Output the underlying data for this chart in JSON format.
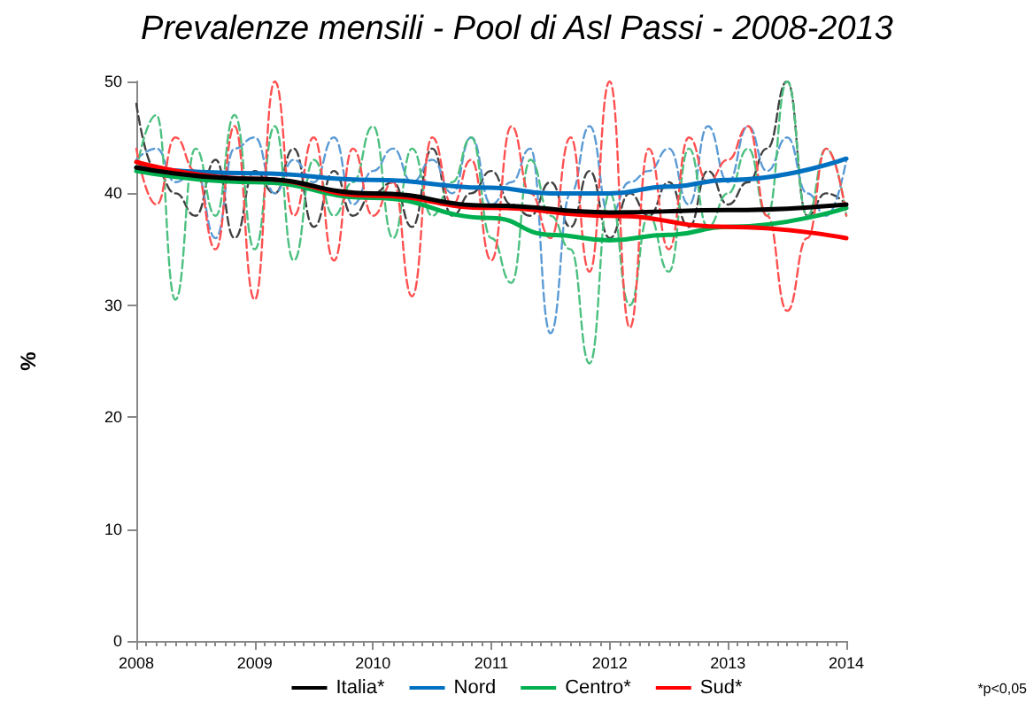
{
  "chart_data": {
    "type": "line",
    "title": "Prevalenze mensili - Pool di Asl Passi - 2008-2013",
    "ylabel": "%",
    "xlim": [
      2008,
      2014
    ],
    "xticks": [
      2008,
      2009,
      2010,
      2011,
      2012,
      2013,
      2014
    ],
    "ylim": [
      0,
      50
    ],
    "yticks": [
      0,
      10,
      20,
      30,
      40,
      50
    ],
    "grid": false,
    "legend": "bottom",
    "marker": "none",
    "annotations": [
      "*p<0,05"
    ],
    "series": [
      {
        "color": "#404040",
        "line_style": "dashed",
        "x": [
          2008,
          2008.17,
          2008.33,
          2008.5,
          2008.67,
          2008.83,
          2009,
          2009.17,
          2009.33,
          2009.5,
          2009.67,
          2009.83,
          2010,
          2010.17,
          2010.33,
          2010.5,
          2010.67,
          2010.83,
          2011,
          2011.17,
          2011.33,
          2011.5,
          2011.67,
          2011.83,
          2012,
          2012.17,
          2012.33,
          2012.5,
          2012.67,
          2012.83,
          2013,
          2013.17,
          2013.33,
          2013.5,
          2013.67,
          2013.83,
          2014
        ],
        "values": [
          48,
          42,
          40,
          38,
          43,
          36,
          42,
          40,
          44,
          37,
          42,
          38,
          40,
          41,
          37,
          44,
          38,
          40,
          42,
          39,
          38,
          41,
          37,
          42,
          36,
          40,
          38,
          41,
          37,
          42,
          39,
          41,
          44,
          50,
          38,
          40,
          39
        ]
      },
      {
        "color": "#5b9bd5",
        "line_style": "dashed",
        "x": [
          2008,
          2008.17,
          2008.33,
          2008.5,
          2008.67,
          2008.83,
          2009,
          2009.17,
          2009.33,
          2009.5,
          2009.67,
          2009.83,
          2010,
          2010.17,
          2010.33,
          2010.5,
          2010.67,
          2010.83,
          2011,
          2011.17,
          2011.33,
          2011.5,
          2011.67,
          2011.83,
          2012,
          2012.17,
          2012.33,
          2012.5,
          2012.67,
          2012.83,
          2013,
          2013.17,
          2013.33,
          2013.5,
          2013.67,
          2013.83,
          2014
        ],
        "values": [
          43,
          44,
          41,
          42,
          36,
          44,
          45,
          40,
          43,
          41,
          45,
          39,
          42,
          44,
          41,
          43,
          40,
          45,
          39,
          41,
          44,
          27.5,
          40,
          46,
          38,
          41,
          42,
          44,
          39,
          46,
          41,
          46,
          42,
          45,
          40,
          38,
          43
        ]
      },
      {
        "color": "#4cc080",
        "line_style": "dashed",
        "x": [
          2008,
          2008.17,
          2008.33,
          2008.5,
          2008.67,
          2008.83,
          2009,
          2009.17,
          2009.33,
          2009.5,
          2009.67,
          2009.83,
          2010,
          2010.17,
          2010.33,
          2010.5,
          2010.67,
          2010.83,
          2011,
          2011.17,
          2011.33,
          2011.5,
          2011.67,
          2011.83,
          2012,
          2012.17,
          2012.33,
          2012.5,
          2012.67,
          2012.83,
          2013,
          2013.17,
          2013.33,
          2013.5,
          2013.67,
          2013.83,
          2014
        ],
        "values": [
          42,
          47,
          30.5,
          44,
          38,
          47,
          35,
          46,
          34,
          43,
          38,
          41,
          46,
          36,
          44,
          38,
          41,
          45,
          36,
          32,
          43,
          38,
          35,
          24.8,
          40,
          30,
          38,
          33,
          44,
          37,
          40,
          44,
          38,
          50,
          38,
          44,
          38
        ]
      },
      {
        "color": "#ff5050",
        "line_style": "dashed",
        "x": [
          2008,
          2008.17,
          2008.33,
          2008.5,
          2008.67,
          2008.83,
          2009,
          2009.17,
          2009.33,
          2009.5,
          2009.67,
          2009.83,
          2010,
          2010.17,
          2010.33,
          2010.5,
          2010.67,
          2010.83,
          2011,
          2011.17,
          2011.33,
          2011.5,
          2011.67,
          2011.83,
          2012,
          2012.17,
          2012.33,
          2012.5,
          2012.67,
          2012.83,
          2013,
          2013.17,
          2013.33,
          2013.5,
          2013.67,
          2013.83,
          2014
        ],
        "values": [
          44,
          39,
          45,
          42,
          35,
          46,
          30.5,
          50,
          38,
          45,
          34,
          44,
          38,
          41,
          30.8,
          45,
          39,
          43,
          34,
          46,
          40,
          36,
          45,
          33,
          50,
          28,
          44,
          35,
          45,
          41,
          43,
          46,
          38,
          29.5,
          36,
          44,
          38
        ]
      },
      {
        "name": "Italia*",
        "color": "#000000",
        "line_style": "solid",
        "x": [
          2008,
          2009,
          2010,
          2011,
          2012,
          2013,
          2014
        ],
        "values": [
          42.3,
          41.3,
          40,
          38.9,
          38.3,
          38.5,
          39
        ]
      },
      {
        "name": "Nord",
        "color": "#0070c0",
        "line_style": "solid",
        "x": [
          2008,
          2009,
          2010,
          2011,
          2011.5,
          2012,
          2012.5,
          2013,
          2014
        ],
        "values": [
          42.3,
          41.8,
          41.2,
          40.5,
          40,
          40,
          40.6,
          41.2,
          43.1
        ]
      },
      {
        "name": "Centro*",
        "color": "#00b050",
        "line_style": "solid",
        "x": [
          2008,
          2009,
          2010,
          2011,
          2011.5,
          2012,
          2012.5,
          2013,
          2014
        ],
        "values": [
          42,
          41,
          39.6,
          37.8,
          36.3,
          35.8,
          36.3,
          37,
          38.7
        ]
      },
      {
        "name": "Sud*",
        "color": "#ff0000",
        "line_style": "solid",
        "x": [
          2008,
          2009,
          2010,
          2011,
          2012,
          2013,
          2014
        ],
        "values": [
          42.8,
          41.3,
          39.8,
          38.7,
          38,
          37,
          36
        ]
      }
    ]
  }
}
